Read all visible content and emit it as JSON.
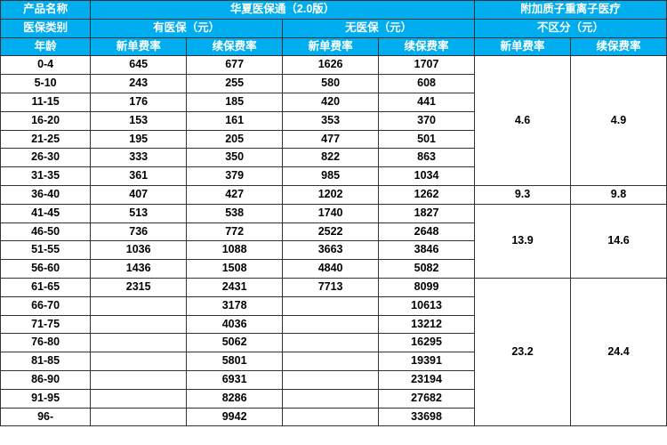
{
  "colors": {
    "header_bg": "#00aeef",
    "header_fg": "#ffffff",
    "border": "#333333",
    "cell_fg": "#000000",
    "cell_bg": "#ffffff"
  },
  "typography": {
    "font_family": "Microsoft YaHei, Arial, sans-serif",
    "header_fontsize_pt": 10,
    "cell_fontsize_pt": 10,
    "font_weight": "bold"
  },
  "header": {
    "r1": {
      "product_name": "产品名称",
      "product_a": "华夏医保通（2.0版）",
      "product_b": "附加质子重离子医疗"
    },
    "r2": {
      "ins_category": "医保类别",
      "with_ins": "有医保（元）",
      "without_ins": "无医保（元）",
      "no_diff": "不区分（元）"
    },
    "r3": {
      "age": "年龄",
      "new_rate": "新单费率",
      "renew_rate": "续保费率"
    }
  },
  "ages": [
    "0-4",
    "5-10",
    "11-15",
    "16-20",
    "21-25",
    "26-30",
    "31-35",
    "36-40",
    "41-45",
    "46-50",
    "51-55",
    "56-60",
    "61-65",
    "66-70",
    "71-75",
    "76-80",
    "81-85",
    "86-90",
    "91-95",
    "96-"
  ],
  "with_ins_new": [
    "645",
    "243",
    "176",
    "153",
    "195",
    "333",
    "361",
    "407",
    "513",
    "736",
    "1036",
    "1436",
    "2315",
    "",
    "",
    "",
    "",
    "",
    "",
    ""
  ],
  "with_ins_renew": [
    "677",
    "255",
    "185",
    "161",
    "205",
    "350",
    "379",
    "427",
    "538",
    "772",
    "1088",
    "1508",
    "2431",
    "3178",
    "4036",
    "5062",
    "5801",
    "6931",
    "8286",
    "9942"
  ],
  "no_ins_new": [
    "1626",
    "580",
    "420",
    "353",
    "477",
    "822",
    "985",
    "1202",
    "1740",
    "2522",
    "3663",
    "4840",
    "7713",
    "",
    "",
    "",
    "",
    "",
    "",
    ""
  ],
  "no_ins_renew": [
    "1707",
    "608",
    "441",
    "370",
    "501",
    "863",
    "1034",
    "1262",
    "1827",
    "2648",
    "3846",
    "5082",
    "8099",
    "10613",
    "13212",
    "16295",
    "19391",
    "23194",
    "27682",
    "33698"
  ],
  "addl_groups": [
    {
      "span": 7,
      "new_rate": "4.6",
      "renew_rate": "4.9"
    },
    {
      "span": 1,
      "new_rate": "9.3",
      "renew_rate": "9.8"
    },
    {
      "span": 4,
      "new_rate": "13.9",
      "renew_rate": "14.6"
    },
    {
      "span": 8,
      "new_rate": "23.2",
      "renew_rate": "24.4"
    }
  ],
  "layout": {
    "columns": [
      {
        "name": "age",
        "width_pct": 13.5
      },
      {
        "name": "with_ins_new",
        "width_pct": 14.4
      },
      {
        "name": "with_ins_renew",
        "width_pct": 14.4
      },
      {
        "name": "no_ins_new",
        "width_pct": 14.4
      },
      {
        "name": "no_ins_renew",
        "width_pct": 14.4
      },
      {
        "name": "addl_new",
        "width_pct": 14.4
      },
      {
        "name": "addl_renew",
        "width_pct": 14.4
      }
    ]
  }
}
